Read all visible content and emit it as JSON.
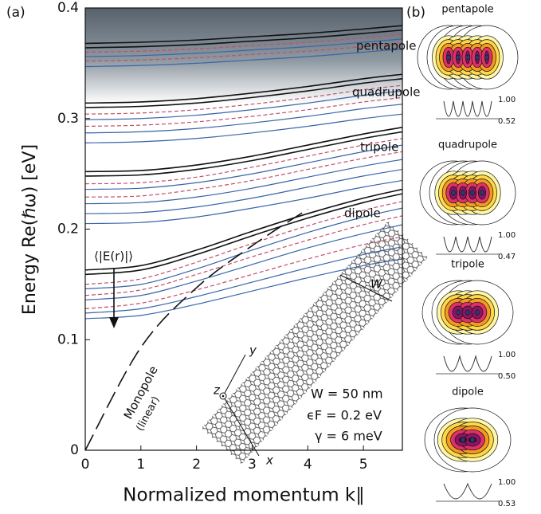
{
  "chart_data": {
    "type": "line",
    "panel_label": "(a)",
    "xlabel": "Normalized momentum k∥",
    "ylabel": "Energy Re(ℏω) [eV]",
    "x": [
      0,
      1,
      2,
      3,
      4,
      5,
      5.7
    ],
    "xlim": [
      0,
      5.7
    ],
    "ylim": [
      0,
      0.4
    ],
    "xticks": [
      0,
      1,
      2,
      3,
      4,
      5
    ],
    "yticks": [
      0,
      0.1,
      0.2,
      0.3,
      0.4
    ],
    "series": [
      {
        "color": "#111111",
        "values": [
          0.163,
          0.167,
          0.181,
          0.198,
          0.214,
          0.228,
          0.236
        ]
      },
      {
        "color": "#111111",
        "values": [
          0.159,
          0.163,
          0.177,
          0.194,
          0.21,
          0.224,
          0.232
        ]
      },
      {
        "color": "#c0506a",
        "dash": true,
        "values": [
          0.15,
          0.155,
          0.17,
          0.187,
          0.203,
          0.217,
          0.225
        ]
      },
      {
        "color": "#3a64a8",
        "values": [
          0.146,
          0.15,
          0.164,
          0.181,
          0.197,
          0.211,
          0.219
        ]
      },
      {
        "color": "#c0506a",
        "dash": true,
        "values": [
          0.14,
          0.145,
          0.159,
          0.175,
          0.19,
          0.204,
          0.212
        ]
      },
      {
        "color": "#3a64a8",
        "values": [
          0.136,
          0.14,
          0.153,
          0.168,
          0.183,
          0.196,
          0.204
        ]
      },
      {
        "color": "#c0506a",
        "dash": true,
        "values": [
          0.128,
          0.133,
          0.145,
          0.159,
          0.173,
          0.186,
          0.193
        ]
      },
      {
        "color": "#3a64a8",
        "values": [
          0.124,
          0.128,
          0.139,
          0.152,
          0.165,
          0.177,
          0.184
        ]
      },
      {
        "color": "#3a64a8",
        "values": [
          0.119,
          0.122,
          0.132,
          0.144,
          0.156,
          0.167,
          0.173
        ]
      },
      {
        "color": "#111111",
        "values": [
          0.252,
          0.253,
          0.258,
          0.266,
          0.276,
          0.286,
          0.292
        ]
      },
      {
        "color": "#111111",
        "values": [
          0.248,
          0.249,
          0.254,
          0.262,
          0.272,
          0.282,
          0.288
        ]
      },
      {
        "color": "#c0506a",
        "dash": true,
        "values": [
          0.241,
          0.242,
          0.247,
          0.256,
          0.266,
          0.276,
          0.282
        ]
      },
      {
        "color": "#3a64a8",
        "values": [
          0.236,
          0.237,
          0.242,
          0.25,
          0.26,
          0.27,
          0.276
        ]
      },
      {
        "color": "#c0506a",
        "dash": true,
        "values": [
          0.229,
          0.23,
          0.236,
          0.244,
          0.254,
          0.264,
          0.27
        ]
      },
      {
        "color": "#3a64a8",
        "values": [
          0.223,
          0.224,
          0.229,
          0.237,
          0.247,
          0.257,
          0.263
        ]
      },
      {
        "color": "#3a64a8",
        "values": [
          0.214,
          0.215,
          0.22,
          0.228,
          0.238,
          0.248,
          0.254
        ]
      },
      {
        "color": "#3a64a8",
        "values": [
          0.205,
          0.206,
          0.211,
          0.219,
          0.228,
          0.238,
          0.244
        ]
      },
      {
        "color": "#111111",
        "values": [
          0.314,
          0.315,
          0.318,
          0.323,
          0.329,
          0.336,
          0.34
        ]
      },
      {
        "color": "#111111",
        "values": [
          0.31,
          0.311,
          0.314,
          0.319,
          0.325,
          0.332,
          0.336
        ]
      },
      {
        "color": "#c0506a",
        "dash": true,
        "values": [
          0.304,
          0.305,
          0.308,
          0.313,
          0.319,
          0.326,
          0.33
        ]
      },
      {
        "color": "#3a64a8",
        "values": [
          0.299,
          0.3,
          0.303,
          0.308,
          0.314,
          0.321,
          0.325
        ]
      },
      {
        "color": "#c0506a",
        "dash": true,
        "values": [
          0.293,
          0.294,
          0.297,
          0.302,
          0.308,
          0.315,
          0.319
        ]
      },
      {
        "color": "#3a64a8",
        "values": [
          0.287,
          0.288,
          0.291,
          0.296,
          0.302,
          0.309,
          0.313
        ]
      },
      {
        "color": "#3a64a8",
        "values": [
          0.278,
          0.279,
          0.282,
          0.287,
          0.293,
          0.3,
          0.304
        ]
      },
      {
        "color": "#111111",
        "values": [
          0.368,
          0.369,
          0.371,
          0.374,
          0.377,
          0.381,
          0.384
        ]
      },
      {
        "color": "#111111",
        "values": [
          0.364,
          0.365,
          0.367,
          0.37,
          0.373,
          0.377,
          0.38
        ]
      },
      {
        "color": "#c0506a",
        "dash": true,
        "values": [
          0.36,
          0.361,
          0.363,
          0.366,
          0.369,
          0.373,
          0.376
        ]
      },
      {
        "color": "#3a64a8",
        "values": [
          0.356,
          0.357,
          0.359,
          0.362,
          0.365,
          0.369,
          0.372
        ]
      },
      {
        "color": "#c0506a",
        "dash": true,
        "values": [
          0.352,
          0.353,
          0.355,
          0.358,
          0.361,
          0.365,
          0.368
        ]
      },
      {
        "color": "#3a64a8",
        "values": [
          0.347,
          0.348,
          0.35,
          0.353,
          0.356,
          0.36,
          0.363
        ]
      },
      {
        "color": "#111111",
        "longdash": true,
        "values": [
          0,
          0.093,
          0.147,
          0.185,
          0.218,
          null,
          null
        ]
      }
    ],
    "annotations": [
      "pentapole",
      "quadrupole",
      "tripole",
      "dipole",
      "⟨|E(r)|⟩",
      "Monopole",
      "(linear)",
      "W = 50 nm",
      "ϵF = 0.2 eV",
      "γ = 6 meV",
      "W",
      "x",
      "y",
      "z"
    ]
  },
  "panel_b": {
    "panel_label": "(b)",
    "maps": [
      {
        "title": "pentapole",
        "top": "1.00",
        "bottom": "0.52"
      },
      {
        "title": "quadrupole",
        "top": "1.00",
        "bottom": "0.47"
      },
      {
        "title": "tripole",
        "top": "1.00",
        "bottom": "0.50"
      },
      {
        "title": "dipole",
        "top": "1.00",
        "bottom": "0.53"
      }
    ]
  }
}
